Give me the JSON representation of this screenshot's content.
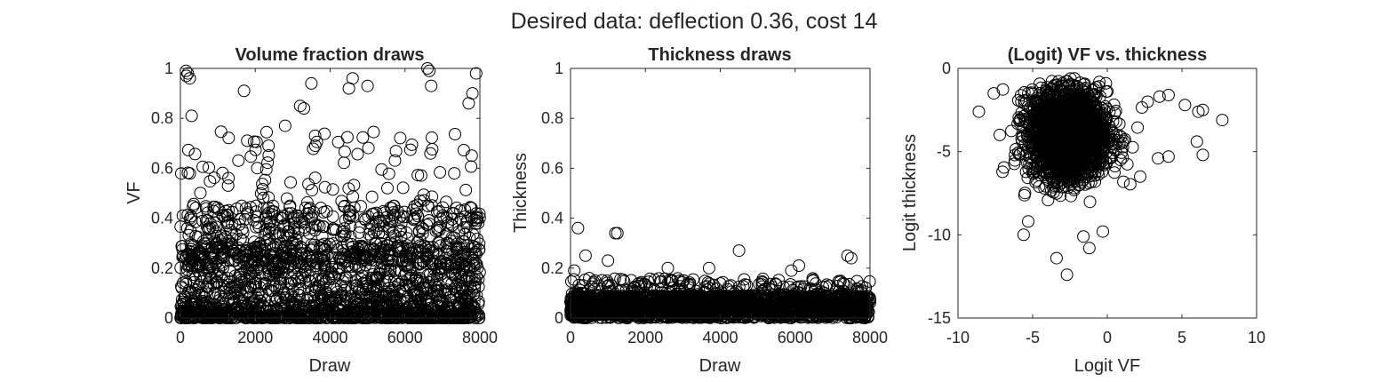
{
  "figure": {
    "suptitle": "Desired data: deflection 0.36, cost 14",
    "background": "#ffffff",
    "marker": "open-circle",
    "marker_color": "#000000"
  },
  "chart_data": [
    {
      "type": "scatter",
      "title": "Volume fraction draws",
      "xlabel": "Draw",
      "ylabel": "VF",
      "xlim": [
        0,
        8000
      ],
      "ylim": [
        0,
        1
      ],
      "xticks": [
        0,
        2000,
        4000,
        6000,
        8000
      ],
      "xtick_labels": [
        "0",
        "2000",
        "4000",
        "6000",
        "8000"
      ],
      "yticks": [
        0,
        0.2,
        0.4,
        0.6,
        0.8,
        1
      ],
      "ytick_labels": [
        "0",
        "0.2",
        "0.4",
        "0.6",
        "0.8",
        "1"
      ],
      "grid": false,
      "n_points": 8000,
      "points_sample": [
        [
          150,
          0.99
        ],
        [
          160,
          0.97
        ],
        [
          200,
          0.98
        ],
        [
          250,
          0.96
        ],
        [
          300,
          0.81
        ],
        [
          1700,
          0.91
        ],
        [
          3200,
          0.85
        ],
        [
          3300,
          0.84
        ],
        [
          3500,
          0.94
        ],
        [
          4500,
          0.92
        ],
        [
          4600,
          0.96
        ],
        [
          5000,
          0.93
        ],
        [
          6600,
          1.0
        ],
        [
          6650,
          0.99
        ],
        [
          6700,
          0.93
        ],
        [
          7900,
          0.98
        ],
        [
          7800,
          0.9
        ],
        [
          7700,
          0.86
        ],
        [
          3600,
          0.73
        ],
        [
          2800,
          0.77
        ]
      ],
      "distribution": "dense near 0, thinning out toward 1; most draws below 0.4"
    },
    {
      "type": "scatter",
      "title": "Thickness draws",
      "xlabel": "Draw",
      "ylabel": "Thickness",
      "xlim": [
        0,
        8000
      ],
      "ylim": [
        0,
        1
      ],
      "xticks": [
        0,
        2000,
        4000,
        6000,
        8000
      ],
      "xtick_labels": [
        "0",
        "2000",
        "4000",
        "6000",
        "8000"
      ],
      "yticks": [
        0,
        0.2,
        0.4,
        0.6,
        0.8,
        1
      ],
      "ytick_labels": [
        "0",
        "0.2",
        "0.4",
        "0.6",
        "0.8",
        "1"
      ],
      "grid": false,
      "n_points": 8000,
      "points_sample": [
        [
          200,
          0.36
        ],
        [
          1200,
          0.34
        ],
        [
          1250,
          0.34
        ],
        [
          400,
          0.25
        ],
        [
          1000,
          0.23
        ],
        [
          4500,
          0.27
        ],
        [
          7400,
          0.25
        ],
        [
          7500,
          0.24
        ],
        [
          2600,
          0.2
        ],
        [
          6100,
          0.21
        ],
        [
          5900,
          0.19
        ],
        [
          3700,
          0.2
        ],
        [
          100,
          0.19
        ]
      ],
      "distribution": "dense band from 0 to about 0.12, few draws up to 0.36"
    },
    {
      "type": "scatter",
      "title": "(Logit) VF vs. thickness",
      "xlabel": "Logit VF",
      "ylabel": "Logit thickness",
      "xlim": [
        -10,
        10
      ],
      "ylim": [
        -15,
        0
      ],
      "xticks": [
        -10,
        -5,
        0,
        5,
        10
      ],
      "xtick_labels": [
        "-10",
        "-5",
        "0",
        "5",
        "10"
      ],
      "yticks": [
        -15,
        -10,
        -5,
        0
      ],
      "ytick_labels": [
        "-15",
        "-10",
        "-5",
        "0"
      ],
      "grid": false,
      "n_points": 8000,
      "points_sample": [
        [
          -2.2,
          -0.6
        ],
        [
          -8.6,
          -2.6
        ],
        [
          -7.6,
          -1.5
        ],
        [
          -7.2,
          -4.0
        ],
        [
          -5.6,
          -10.0
        ],
        [
          -3.4,
          -11.4
        ],
        [
          -2.7,
          -12.4
        ],
        [
          -0.3,
          -9.8
        ],
        [
          -5.3,
          -9.2
        ],
        [
          2.7,
          -2.0
        ],
        [
          3.5,
          -1.7
        ],
        [
          4.1,
          -1.6
        ],
        [
          5.2,
          -2.2
        ],
        [
          6.1,
          -2.6
        ],
        [
          6.4,
          -2.5
        ],
        [
          7.7,
          -3.1
        ],
        [
          6.0,
          -4.4
        ],
        [
          6.4,
          -5.2
        ],
        [
          4.1,
          -5.3
        ],
        [
          3.4,
          -5.4
        ],
        [
          2.2,
          -6.5
        ],
        [
          -1.6,
          -10.1
        ],
        [
          -1.2,
          -10.8
        ]
      ],
      "distribution": "dense cloud centered near (-2.5, -4), spread roughly -7..2 in x and -9..-1 in y"
    }
  ]
}
